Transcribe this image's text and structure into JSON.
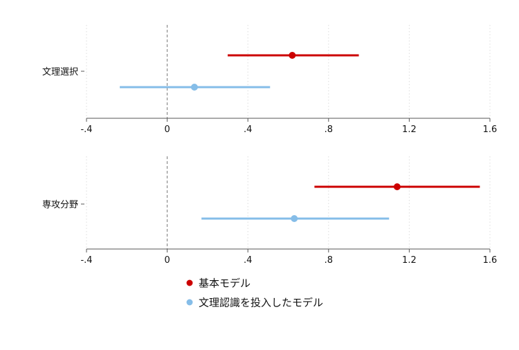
{
  "chart_data": {
    "type": "coefficient-plot",
    "x_ticks": [
      "-.4",
      "0",
      ".4",
      ".8",
      "1.2",
      "1.6"
    ],
    "x_tick_values": [
      -0.4,
      0,
      0.4,
      0.8,
      1.2,
      1.6
    ],
    "xlim": [
      -0.4,
      1.6
    ],
    "reference_line": 0,
    "grid": "vertical dotted",
    "legend_position": "bottom",
    "series": [
      {
        "name": "基本モデル",
        "color": "#cc0000"
      },
      {
        "name": "文理認識を投入したモデル",
        "color": "#85bde8"
      }
    ],
    "panels": [
      {
        "label": "文理選択",
        "estimates": [
          {
            "series": 0,
            "point": 0.62,
            "lower": 0.3,
            "upper": 0.95
          },
          {
            "series": 1,
            "point": 0.135,
            "lower": -0.235,
            "upper": 0.51
          }
        ]
      },
      {
        "label": "専攻分野",
        "estimates": [
          {
            "series": 0,
            "point": 1.14,
            "lower": 0.73,
            "upper": 1.55
          },
          {
            "series": 1,
            "point": 0.63,
            "lower": 0.17,
            "upper": 1.1
          }
        ]
      }
    ]
  }
}
